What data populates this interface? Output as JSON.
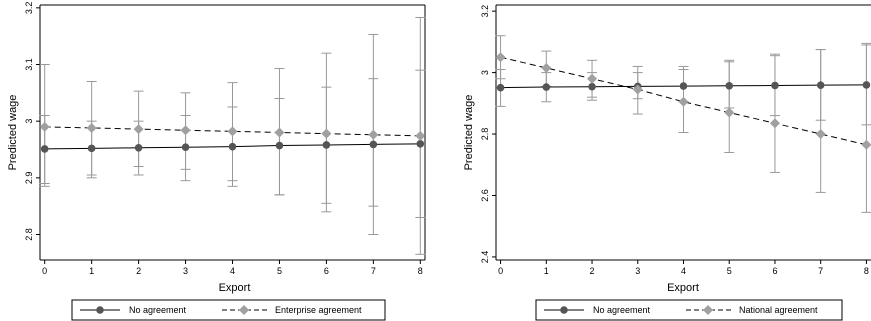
{
  "chart_data": [
    {
      "type": "line",
      "xlabel": "Export",
      "ylabel": "Predicted wage",
      "x": [
        0,
        1,
        2,
        3,
        4,
        5,
        6,
        7,
        8
      ],
      "xlim": [
        -0.1,
        8.1
      ],
      "ylim": [
        2.755,
        3.205
      ],
      "yticks": [
        2.8,
        2.9,
        3,
        3.1,
        3.2
      ],
      "ytick_labels": [
        "2.8",
        "2.9",
        "3",
        "3.1",
        "3.2"
      ],
      "xtick_labels": [
        "0",
        "1",
        "2",
        "3",
        "4",
        "5",
        "6",
        "7",
        "8"
      ],
      "grid": false,
      "legend_position": "bottom",
      "series": [
        {
          "name": "No agreement",
          "marker": "circle",
          "line": "solid",
          "color": "#555555",
          "values": [
            2.951,
            2.952,
            2.953,
            2.954,
            2.955,
            2.957,
            2.958,
            2.959,
            2.96
          ],
          "ci_low": [
            2.89,
            2.905,
            2.905,
            2.895,
            2.885,
            2.87,
            2.855,
            2.85,
            2.83
          ],
          "ci_high": [
            3.01,
            3.0,
            3.0,
            3.01,
            3.025,
            3.04,
            3.06,
            3.075,
            3.09
          ]
        },
        {
          "name": "Enterprise agreement",
          "marker": "diamond",
          "line": "dashed",
          "color": "#a0a0a0",
          "values": [
            2.99,
            2.988,
            2.986,
            2.984,
            2.982,
            2.98,
            2.978,
            2.976,
            2.974
          ],
          "ci_low": [
            2.885,
            2.9,
            2.92,
            2.915,
            2.895,
            2.87,
            2.84,
            2.8,
            2.765
          ],
          "ci_high": [
            3.1,
            3.07,
            3.053,
            3.05,
            3.068,
            3.093,
            3.12,
            3.153,
            3.183
          ]
        }
      ]
    },
    {
      "type": "line",
      "xlabel": "Export",
      "ylabel": "Predicted wage",
      "x": [
        0,
        1,
        2,
        3,
        4,
        5,
        6,
        7,
        8
      ],
      "xlim": [
        -0.1,
        8.1
      ],
      "ylim": [
        2.39,
        3.22
      ],
      "yticks": [
        2.4,
        2.6,
        2.8,
        3,
        3.2
      ],
      "ytick_labels": [
        "2.4",
        "2.6",
        "2.8",
        "3",
        "3.2"
      ],
      "xtick_labels": [
        "0",
        "1",
        "2",
        "3",
        "4",
        "5",
        "6",
        "7",
        "8"
      ],
      "grid": false,
      "legend_position": "bottom",
      "series": [
        {
          "name": "No agreement",
          "marker": "circle",
          "line": "solid",
          "color": "#555555",
          "values": [
            2.951,
            2.953,
            2.954,
            2.955,
            2.956,
            2.957,
            2.958,
            2.959,
            2.96
          ],
          "ci_low": [
            2.89,
            2.905,
            2.91,
            2.915,
            2.905,
            2.885,
            2.86,
            2.845,
            2.83
          ],
          "ci_high": [
            3.01,
            3.0,
            3.0,
            3.0,
            3.01,
            3.035,
            3.055,
            3.075,
            3.09
          ]
        },
        {
          "name": "National agreement",
          "marker": "diamond",
          "line": "dashed",
          "color": "#a0a0a0",
          "values": [
            3.05,
            3.015,
            2.98,
            2.945,
            2.905,
            2.87,
            2.835,
            2.8,
            2.765
          ],
          "ci_low": [
            2.98,
            2.955,
            2.92,
            2.865,
            2.805,
            2.74,
            2.675,
            2.61,
            2.545
          ],
          "ci_high": [
            3.12,
            3.07,
            3.04,
            3.02,
            3.02,
            3.04,
            3.06,
            3.075,
            3.095
          ]
        }
      ]
    }
  ]
}
